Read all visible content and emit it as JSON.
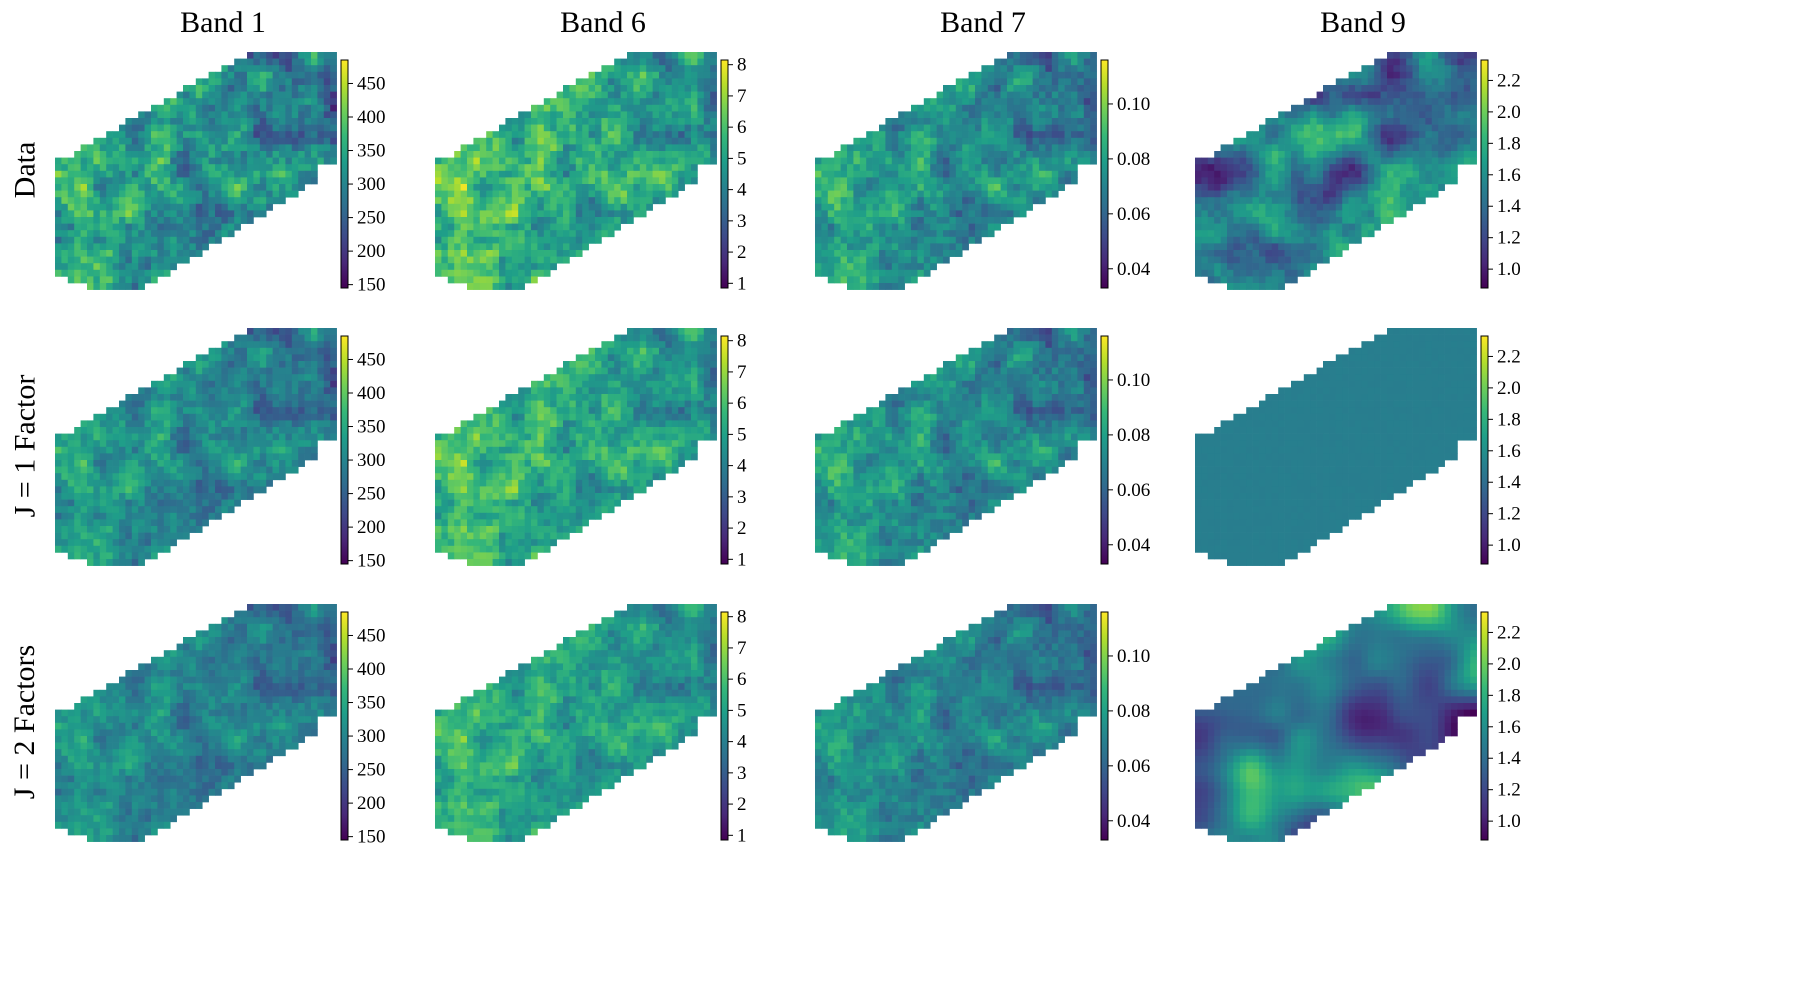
{
  "figure": {
    "columns": [
      "Band 1",
      "Band 6",
      "Band 7",
      "Band 9"
    ],
    "rows": [
      "Data",
      "J = 1 Factor",
      "J = 2 Factors"
    ]
  },
  "colormap": {
    "name": "viridis",
    "stops": [
      "#440154",
      "#482878",
      "#3e4989",
      "#31688e",
      "#26828e",
      "#1f9e89",
      "#35b779",
      "#6ece58",
      "#b5de2b",
      "#fde725"
    ]
  },
  "chart_data": [
    {
      "type": "heatmap",
      "band": "Band 1",
      "colorbar": {
        "min": 145,
        "max": 485,
        "ticks": [
          150,
          200,
          250,
          300,
          350,
          400,
          450
        ]
      },
      "rows": [
        {
          "label": "Data",
          "mean": 318,
          "spread": 62,
          "pattern": "rough"
        },
        {
          "label": "J = 1 Factor",
          "mean": 305,
          "spread": 48,
          "pattern": "rough"
        },
        {
          "label": "J = 2 Factors",
          "mean": 296,
          "spread": 40,
          "pattern": "rough"
        }
      ]
    },
    {
      "type": "heatmap",
      "band": "Band 6",
      "colorbar": {
        "min": 0.85,
        "max": 8.15,
        "ticks": [
          1,
          2,
          3,
          4,
          5,
          6,
          7,
          8
        ]
      },
      "rows": [
        {
          "label": "Data",
          "mean": 5.3,
          "spread": 1.25,
          "pattern": "rough"
        },
        {
          "label": "J = 1 Factor",
          "mean": 5.2,
          "spread": 1.1,
          "pattern": "rough"
        },
        {
          "label": "J = 2 Factors",
          "mean": 5.0,
          "spread": 0.95,
          "pattern": "rough"
        }
      ]
    },
    {
      "type": "heatmap",
      "band": "Band 7",
      "colorbar": {
        "min": 0.033,
        "max": 0.116,
        "ticks": [
          "0.04",
          "0.06",
          "0.08",
          "0.10"
        ]
      },
      "rows": [
        {
          "label": "Data",
          "mean": 0.074,
          "spread": 0.013,
          "pattern": "rough"
        },
        {
          "label": "J = 1 Factor",
          "mean": 0.073,
          "spread": 0.012,
          "pattern": "rough"
        },
        {
          "label": "J = 2 Factors",
          "mean": 0.07,
          "spread": 0.01,
          "pattern": "rough"
        }
      ]
    },
    {
      "type": "heatmap",
      "band": "Band 9",
      "colorbar": {
        "min": 0.88,
        "max": 2.33,
        "ticks": [
          "1.0",
          "1.2",
          "1.4",
          "1.6",
          "1.8",
          "2.0",
          "2.2"
        ]
      },
      "rows": [
        {
          "label": "Data",
          "mean": 1.45,
          "spread": 0.3,
          "pattern": "blobby"
        },
        {
          "label": "J = 1 Factor",
          "mean": 1.5,
          "spread": 0.015,
          "pattern": "flat"
        },
        {
          "label": "J = 2 Factors",
          "mean": 1.45,
          "spread": 0.38,
          "pattern": "smooth"
        }
      ]
    }
  ]
}
